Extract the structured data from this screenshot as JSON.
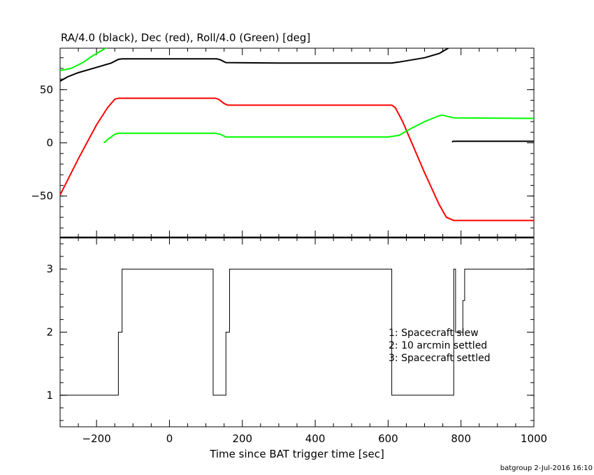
{
  "footer": {
    "credit": "batgroup  2-Jul-2016 16:10"
  },
  "colors": {
    "black": "#000000",
    "red": "#ff0000",
    "green": "#00ff00"
  },
  "chart_data": [
    {
      "type": "line",
      "title": "RA/4.0 (black), Dec (red), Roll/4.0 (Green) [deg]",
      "xlim": [
        -300,
        1000
      ],
      "ylim": [
        -89,
        89
      ],
      "yticks": [
        -50,
        0,
        50
      ],
      "ytick_labels": [
        "−50",
        "0",
        "50"
      ],
      "grid": false,
      "series": [
        {
          "color": "#000000",
          "segments": [
            [
              [
                -300,
                58
              ],
              [
                -280,
                62
              ],
              [
                -250,
                66
              ],
              [
                -200,
                71
              ],
              [
                -160,
                75
              ],
              [
                -140,
                78.5
              ],
              [
                -130,
                79
              ],
              [
                0,
                79
              ],
              [
                130,
                79
              ],
              [
                140,
                78
              ],
              [
                155,
                75.5
              ],
              [
                300,
                75
              ],
              [
                610,
                75
              ],
              [
                630,
                76
              ],
              [
                700,
                80
              ],
              [
                740,
                84
              ],
              [
                770,
                90
              ]
            ],
            [
              [
                775,
                1
              ],
              [
                780,
                1.5
              ],
              [
                800,
                1.5
              ],
              [
                1000,
                1.5
              ]
            ]
          ]
        },
        {
          "color": "#ff0000",
          "segments": [
            [
              [
                -300,
                -49
              ],
              [
                -250,
                -15
              ],
              [
                -200,
                17
              ],
              [
                -170,
                33
              ],
              [
                -150,
                41
              ],
              [
                -140,
                42
              ],
              [
                125,
                42
              ],
              [
                135,
                41
              ],
              [
                150,
                37
              ],
              [
                160,
                35.5
              ],
              [
                610,
                35.5
              ],
              [
                620,
                33
              ],
              [
                640,
                20
              ],
              [
                700,
                -28
              ],
              [
                740,
                -58
              ],
              [
                760,
                -70
              ],
              [
                780,
                -73
              ],
              [
                1000,
                -73
              ]
            ]
          ]
        },
        {
          "color": "#00ff00",
          "segments": [
            [
              [
                -300,
                68
              ],
              [
                -270,
                70
              ],
              [
                -240,
                75
              ],
              [
                -210,
                82
              ],
              [
                -180,
                88
              ],
              [
                -170,
                90
              ]
            ],
            [
              [
                -180,
                0
              ],
              [
                -170,
                3
              ],
              [
                -150,
                8
              ],
              [
                -140,
                9
              ],
              [
                125,
                9
              ],
              [
                140,
                8
              ],
              [
                155,
                5.5
              ],
              [
                600,
                5.5
              ],
              [
                630,
                7
              ],
              [
                660,
                13
              ],
              [
                700,
                20
              ],
              [
                740,
                25.5
              ],
              [
                750,
                26
              ],
              [
                780,
                23.5
              ],
              [
                1000,
                23
              ]
            ]
          ]
        }
      ]
    },
    {
      "type": "line",
      "xlabel": "Time since BAT trigger time [sec]",
      "xlim": [
        -300,
        1000
      ],
      "ylim": [
        0.5,
        3.5
      ],
      "xticks": [
        -200,
        0,
        200,
        400,
        600,
        800,
        1000
      ],
      "xtick_labels": [
        "−200",
        "0",
        "200",
        "400",
        "600",
        "800",
        "1000"
      ],
      "yticks": [
        1,
        2,
        3
      ],
      "ytick_labels": [
        "1",
        "2",
        "3"
      ],
      "grid": false,
      "legend_location": "right",
      "annotations": [
        "1: Spacecraft slew",
        "2: 10 arcmin settled",
        "3: Spacecraft settled"
      ],
      "series": [
        {
          "color": "#000000",
          "points": [
            [
              -300,
              1
            ],
            [
              -140,
              1
            ],
            [
              -140,
              2
            ],
            [
              -130,
              2
            ],
            [
              -130,
              3
            ],
            [
              120,
              3
            ],
            [
              120,
              1
            ],
            [
              155,
              1
            ],
            [
              155,
              2
            ],
            [
              165,
              2
            ],
            [
              165,
              3
            ],
            [
              610,
              3
            ],
            [
              610,
              1
            ],
            [
              780,
              1
            ],
            [
              780,
              3
            ],
            [
              785,
              3
            ],
            [
              785,
              2
            ],
            [
              805,
              2
            ],
            [
              805,
              2.5
            ],
            [
              810,
              2.5
            ],
            [
              810,
              3
            ],
            [
              1000,
              3
            ]
          ]
        }
      ]
    }
  ]
}
